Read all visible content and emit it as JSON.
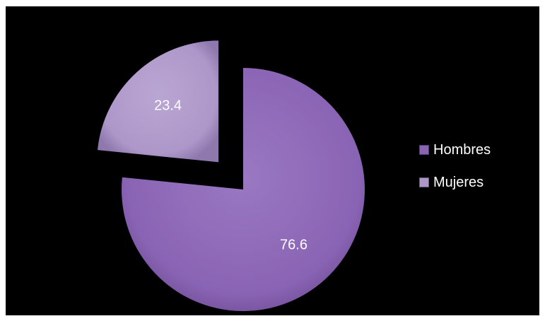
{
  "chart_data": {
    "type": "pie",
    "title": "",
    "slices": [
      {
        "name": "Hombres",
        "value": 76.6,
        "label": "76.6",
        "color": "#8a64b4",
        "exploded": false
      },
      {
        "name": "Mujeres",
        "value": 23.4,
        "label": "23.4",
        "color": "#ad97c9",
        "exploded": true
      }
    ],
    "start_angle": "12 o'clock",
    "direction": "clockwise",
    "legend_position": "right",
    "background": "#000000"
  }
}
